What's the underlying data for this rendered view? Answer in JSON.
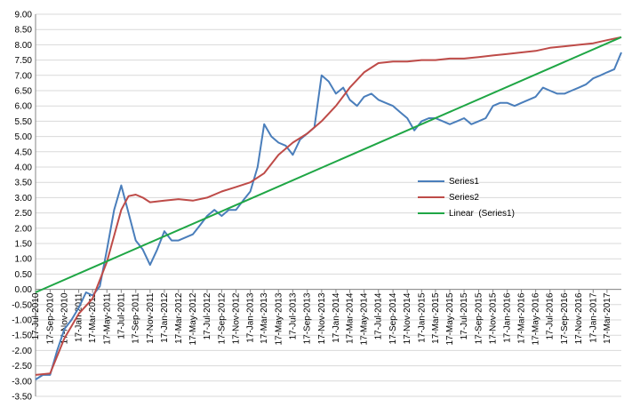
{
  "chart_data": {
    "type": "line",
    "title": "",
    "xlabel": "",
    "ylabel": "",
    "ylim": [
      -3.5,
      9.0
    ],
    "ytick_step": 0.5,
    "y_tick_labels": [
      "-3.50",
      "-3.00",
      "-2.50",
      "-2.00",
      "-1.50",
      "-1.00",
      "-0.50",
      "0.00",
      "0.50",
      "1.00",
      "1.50",
      "2.00",
      "2.50",
      "3.00",
      "3.50",
      "4.00",
      "4.50",
      "5.00",
      "5.50",
      "6.00",
      "6.50",
      "7.00",
      "7.50",
      "8.00",
      "8.50",
      "9.00"
    ],
    "grid": true,
    "legend_position": "center-right",
    "x_tick_labels": [
      "17-Jul-2010",
      "17-Sep-2010",
      "17-Nov-2010",
      "17-Jan-2011",
      "17-Mar-2011",
      "17-May-2011",
      "17-Jul-2011",
      "17-Sep-2011",
      "17-Nov-2011",
      "17-Jan-2012",
      "17-Mar-2012",
      "17-May-2012",
      "17-Jul-2012",
      "17-Sep-2012",
      "17-Nov-2012",
      "17-Jan-2013",
      "17-Mar-2013",
      "17-May-2013",
      "17-Jul-2013",
      "17-Sep-2013",
      "17-Nov-2013",
      "17-Jan-2014",
      "17-Mar-2014",
      "17-May-2014",
      "17-Jul-2014",
      "17-Sep-2014",
      "17-Nov-2014",
      "17-Jan-2015",
      "17-Mar-2015",
      "17-May-2015",
      "17-Jul-2015",
      "17-Sep-2015",
      "17-Nov-2015",
      "17-Jan-2016",
      "17-Mar-2016",
      "17-May-2016",
      "17-Jul-2016",
      "17-Sep-2016",
      "17-Nov-2016",
      "17-Jan-2017",
      "17-Mar-2017"
    ],
    "series": [
      {
        "name": "Series1",
        "color": "#4a7ebb",
        "x": [
          "17-Jul-2010",
          "17-Aug-2010",
          "17-Sep-2010",
          "17-Oct-2010",
          "17-Nov-2010",
          "17-Dec-2010",
          "17-Jan-2011",
          "17-Feb-2011",
          "17-Mar-2011",
          "17-Apr-2011",
          "17-May-2011",
          "17-Jun-2011",
          "17-Jul-2011",
          "17-Aug-2011",
          "17-Sep-2011",
          "17-Oct-2011",
          "17-Nov-2011",
          "17-Dec-2011",
          "17-Jan-2012",
          "17-Feb-2012",
          "17-Mar-2012",
          "17-Apr-2012",
          "17-May-2012",
          "17-Jun-2012",
          "17-Jul-2012",
          "17-Aug-2012",
          "17-Sep-2012",
          "17-Oct-2012",
          "17-Nov-2012",
          "17-Dec-2012",
          "17-Jan-2013",
          "17-Feb-2013",
          "17-Mar-2013",
          "17-Apr-2013",
          "17-May-2013",
          "17-Jun-2013",
          "17-Jul-2013",
          "17-Aug-2013",
          "17-Sep-2013",
          "17-Oct-2013",
          "17-Nov-2013",
          "17-Dec-2013",
          "17-Jan-2014",
          "17-Feb-2014",
          "17-Mar-2014",
          "17-Apr-2014",
          "17-May-2014",
          "17-Jun-2014",
          "17-Jul-2014",
          "17-Aug-2014",
          "17-Sep-2014",
          "17-Oct-2014",
          "17-Nov-2014",
          "17-Dec-2014",
          "17-Jan-2015",
          "17-Feb-2015",
          "17-Mar-2015",
          "17-Apr-2015",
          "17-May-2015",
          "17-Jun-2015",
          "17-Jul-2015",
          "17-Aug-2015",
          "17-Sep-2015",
          "17-Oct-2015",
          "17-Nov-2015",
          "17-Dec-2015",
          "17-Jan-2016",
          "17-Feb-2016",
          "17-Mar-2016",
          "17-Apr-2016",
          "17-May-2016",
          "17-Jun-2016",
          "17-Jul-2016",
          "17-Aug-2016",
          "17-Sep-2016",
          "17-Oct-2016",
          "17-Nov-2016",
          "17-Dec-2016",
          "17-Jan-2017",
          "17-Feb-2017",
          "17-Mar-2017",
          "17-Apr-2017",
          "17-May-2017"
        ],
        "y": [
          -2.95,
          -2.8,
          -2.8,
          -2.0,
          -1.3,
          -1.0,
          -0.6,
          -0.1,
          -0.2,
          0.1,
          1.3,
          2.6,
          3.4,
          2.5,
          1.6,
          1.3,
          0.8,
          1.3,
          1.9,
          1.6,
          1.6,
          1.7,
          1.8,
          2.1,
          2.4,
          2.6,
          2.4,
          2.6,
          2.6,
          2.9,
          3.2,
          4.0,
          5.4,
          5.0,
          4.8,
          4.7,
          4.4,
          4.9,
          5.1,
          5.3,
          7.0,
          6.8,
          6.4,
          6.6,
          6.2,
          6.0,
          6.3,
          6.4,
          6.2,
          6.1,
          6.0,
          5.8,
          5.6,
          5.2,
          5.5,
          5.6,
          5.6,
          5.5,
          5.4,
          5.5,
          5.6,
          5.4,
          5.5,
          5.6,
          6.0,
          6.1,
          6.1,
          6.0,
          6.1,
          6.2,
          6.3,
          6.6,
          6.5,
          6.4,
          6.4,
          6.5,
          6.6,
          6.7,
          6.9,
          7.0,
          7.1,
          7.2,
          7.75
        ]
      },
      {
        "name": "Series2",
        "color": "#be4b48",
        "x": [
          "17-Jul-2010",
          "17-Sep-2010",
          "17-Nov-2010",
          "17-Jan-2011",
          "17-Mar-2011",
          "17-May-2011",
          "17-Jul-2011",
          "17-Aug-2011",
          "17-Sep-2011",
          "17-Oct-2011",
          "17-Nov-2011",
          "17-Jan-2012",
          "17-Mar-2012",
          "17-May-2012",
          "17-Jul-2012",
          "17-Sep-2012",
          "17-Nov-2012",
          "17-Jan-2013",
          "17-Mar-2013",
          "17-May-2013",
          "17-Jul-2013",
          "17-Sep-2013",
          "17-Nov-2013",
          "17-Jan-2014",
          "17-Mar-2014",
          "17-May-2014",
          "17-Jul-2014",
          "17-Sep-2014",
          "17-Nov-2014",
          "17-Jan-2015",
          "17-Mar-2015",
          "17-May-2015",
          "17-Jul-2015",
          "17-Sep-2015",
          "17-Nov-2015",
          "17-Jan-2016",
          "17-Mar-2016",
          "17-May-2016",
          "17-Jul-2016",
          "17-Sep-2016",
          "17-Nov-2016",
          "17-Jan-2017",
          "17-Mar-2017",
          "17-May-2017"
        ],
        "y": [
          -2.8,
          -2.75,
          -1.6,
          -0.8,
          -0.3,
          0.9,
          2.6,
          3.05,
          3.1,
          3.0,
          2.85,
          2.9,
          2.95,
          2.9,
          3.0,
          3.2,
          3.35,
          3.5,
          3.8,
          4.4,
          4.8,
          5.1,
          5.5,
          6.0,
          6.6,
          7.1,
          7.4,
          7.45,
          7.45,
          7.5,
          7.5,
          7.55,
          7.55,
          7.6,
          7.65,
          7.7,
          7.75,
          7.8,
          7.9,
          7.95,
          8.0,
          8.05,
          8.15,
          8.25
        ]
      },
      {
        "name": "Linear  (Series1)",
        "color": "#1fa645",
        "x": [
          "17-Jul-2010",
          "17-May-2017"
        ],
        "y": [
          -0.1,
          8.25
        ]
      }
    ]
  }
}
